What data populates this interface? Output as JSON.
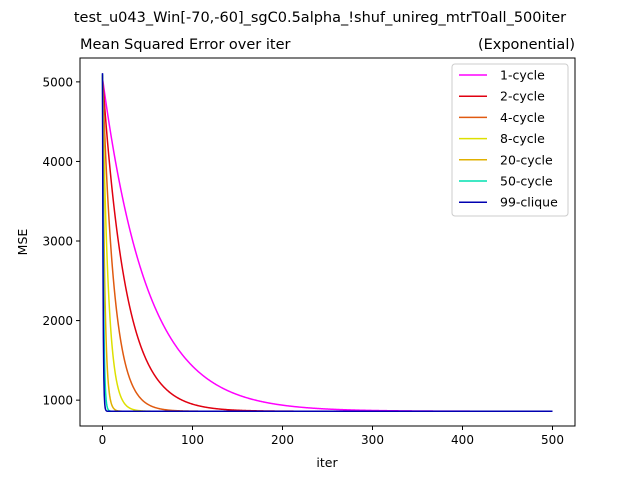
{
  "chart_data": {
    "type": "line",
    "suptitle": "test_u043_Win[-70,-60]_sgC0.5alpha_!shuf_unireg_mtrT0all_500iter",
    "title_left": "Mean Squared Error over iter",
    "title_right": "(Exponential)",
    "xlabel": "iter",
    "ylabel": "MSE",
    "xlim": [
      -25,
      525
    ],
    "ylim": [
      675,
      5300
    ],
    "x_ticks": [
      0,
      100,
      200,
      300,
      400,
      500
    ],
    "y_ticks": [
      1000,
      2000,
      3000,
      4000,
      5000
    ],
    "legend_position": "top-right",
    "grid": false,
    "x": {
      "start": 0,
      "end": 500
    },
    "series": [
      {
        "name": "1-cycle",
        "color": "#ff00ff",
        "start": 5050,
        "plateau": 860,
        "tau": 50
      },
      {
        "name": "2-cycle",
        "color": "#e00010",
        "start": 5060,
        "plateau": 860,
        "tau": 26
      },
      {
        "name": "4-cycle",
        "color": "#e05a10",
        "start": 5070,
        "plateau": 860,
        "tau": 13
      },
      {
        "name": "8-cycle",
        "color": "#dde000",
        "start": 5080,
        "plateau": 860,
        "tau": 6.5
      },
      {
        "name": "20-cycle",
        "color": "#e0b000",
        "start": 5090,
        "plateau": 860,
        "tau": 2.6
      },
      {
        "name": "50-cycle",
        "color": "#00e0b0",
        "start": 5100,
        "plateau": 860,
        "tau": 1.2
      },
      {
        "name": "99-clique",
        "color": "#0000b0",
        "start": 5110,
        "plateau": 860,
        "tau": 0.65
      }
    ]
  }
}
